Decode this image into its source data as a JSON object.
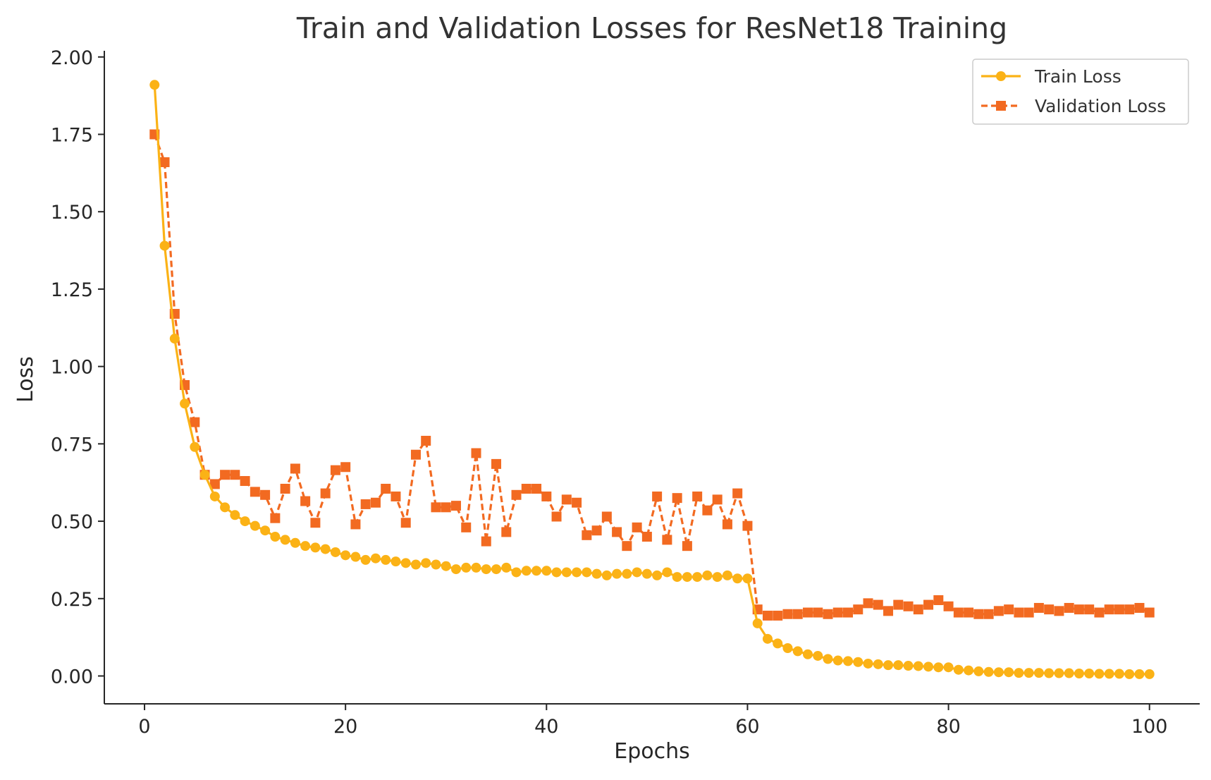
{
  "chart_data": {
    "type": "line",
    "title": "Train and Validation Losses for ResNet18 Training",
    "xlabel": "Epochs",
    "ylabel": "Loss",
    "xlim": [
      -4,
      105
    ],
    "ylim": [
      -0.09,
      2.02
    ],
    "xticks": [
      0,
      20,
      40,
      60,
      80,
      100
    ],
    "yticks": [
      0.0,
      0.25,
      0.5,
      0.75,
      1.0,
      1.25,
      1.5,
      1.75,
      2.0
    ],
    "xtick_labels": [
      "0",
      "20",
      "40",
      "60",
      "80",
      "100"
    ],
    "ytick_labels": [
      "0.00",
      "0.25",
      "0.50",
      "0.75",
      "1.00",
      "1.25",
      "1.50",
      "1.75",
      "2.00"
    ],
    "grid": false,
    "legend_position": "top-right",
    "x": [
      1,
      2,
      3,
      4,
      5,
      6,
      7,
      8,
      9,
      10,
      11,
      12,
      13,
      14,
      15,
      16,
      17,
      18,
      19,
      20,
      21,
      22,
      23,
      24,
      25,
      26,
      27,
      28,
      29,
      30,
      31,
      32,
      33,
      34,
      35,
      36,
      37,
      38,
      39,
      40,
      41,
      42,
      43,
      44,
      45,
      46,
      47,
      48,
      49,
      50,
      51,
      52,
      53,
      54,
      55,
      56,
      57,
      58,
      59,
      60,
      61,
      62,
      63,
      64,
      65,
      66,
      67,
      68,
      69,
      70,
      71,
      72,
      73,
      74,
      75,
      76,
      77,
      78,
      79,
      80,
      81,
      82,
      83,
      84,
      85,
      86,
      87,
      88,
      89,
      90,
      91,
      92,
      93,
      94,
      95,
      96,
      97,
      98,
      99,
      100
    ],
    "series": [
      {
        "name": "Train Loss",
        "color": "#FBB216",
        "marker": "circle",
        "linestyle": "solid",
        "values": [
          1.91,
          1.39,
          1.09,
          0.88,
          0.74,
          0.65,
          0.58,
          0.545,
          0.52,
          0.5,
          0.485,
          0.47,
          0.45,
          0.44,
          0.43,
          0.42,
          0.415,
          0.41,
          0.4,
          0.39,
          0.385,
          0.375,
          0.38,
          0.375,
          0.37,
          0.365,
          0.36,
          0.365,
          0.36,
          0.355,
          0.345,
          0.35,
          0.35,
          0.345,
          0.345,
          0.35,
          0.335,
          0.34,
          0.34,
          0.34,
          0.335,
          0.335,
          0.335,
          0.335,
          0.33,
          0.325,
          0.33,
          0.33,
          0.335,
          0.33,
          0.325,
          0.335,
          0.32,
          0.32,
          0.32,
          0.325,
          0.32,
          0.325,
          0.315,
          0.315,
          0.17,
          0.12,
          0.105,
          0.09,
          0.08,
          0.07,
          0.065,
          0.055,
          0.05,
          0.048,
          0.045,
          0.04,
          0.038,
          0.035,
          0.035,
          0.033,
          0.032,
          0.03,
          0.028,
          0.028,
          0.02,
          0.018,
          0.015,
          0.013,
          0.012,
          0.012,
          0.01,
          0.01,
          0.01,
          0.009,
          0.009,
          0.009,
          0.008,
          0.008,
          0.007,
          0.007,
          0.007,
          0.006,
          0.006,
          0.006
        ]
      },
      {
        "name": "Validation Loss",
        "color": "#F26A21",
        "marker": "square",
        "linestyle": "dashed",
        "values": [
          1.75,
          1.66,
          1.17,
          0.94,
          0.82,
          0.65,
          0.62,
          0.65,
          0.65,
          0.63,
          0.595,
          0.585,
          0.51,
          0.605,
          0.67,
          0.565,
          0.495,
          0.59,
          0.665,
          0.675,
          0.49,
          0.555,
          0.56,
          0.605,
          0.58,
          0.495,
          0.715,
          0.76,
          0.545,
          0.545,
          0.55,
          0.48,
          0.72,
          0.435,
          0.685,
          0.465,
          0.585,
          0.605,
          0.605,
          0.58,
          0.515,
          0.57,
          0.56,
          0.455,
          0.47,
          0.515,
          0.465,
          0.42,
          0.48,
          0.45,
          0.58,
          0.44,
          0.575,
          0.42,
          0.58,
          0.535,
          0.57,
          0.49,
          0.59,
          0.485,
          0.215,
          0.195,
          0.195,
          0.2,
          0.2,
          0.205,
          0.205,
          0.2,
          0.205,
          0.205,
          0.215,
          0.235,
          0.23,
          0.21,
          0.23,
          0.225,
          0.215,
          0.23,
          0.245,
          0.225,
          0.205,
          0.205,
          0.2,
          0.2,
          0.21,
          0.215,
          0.205,
          0.205,
          0.22,
          0.215,
          0.21,
          0.22,
          0.215,
          0.215,
          0.205,
          0.215,
          0.215,
          0.215,
          0.22,
          0.205
        ]
      }
    ]
  }
}
